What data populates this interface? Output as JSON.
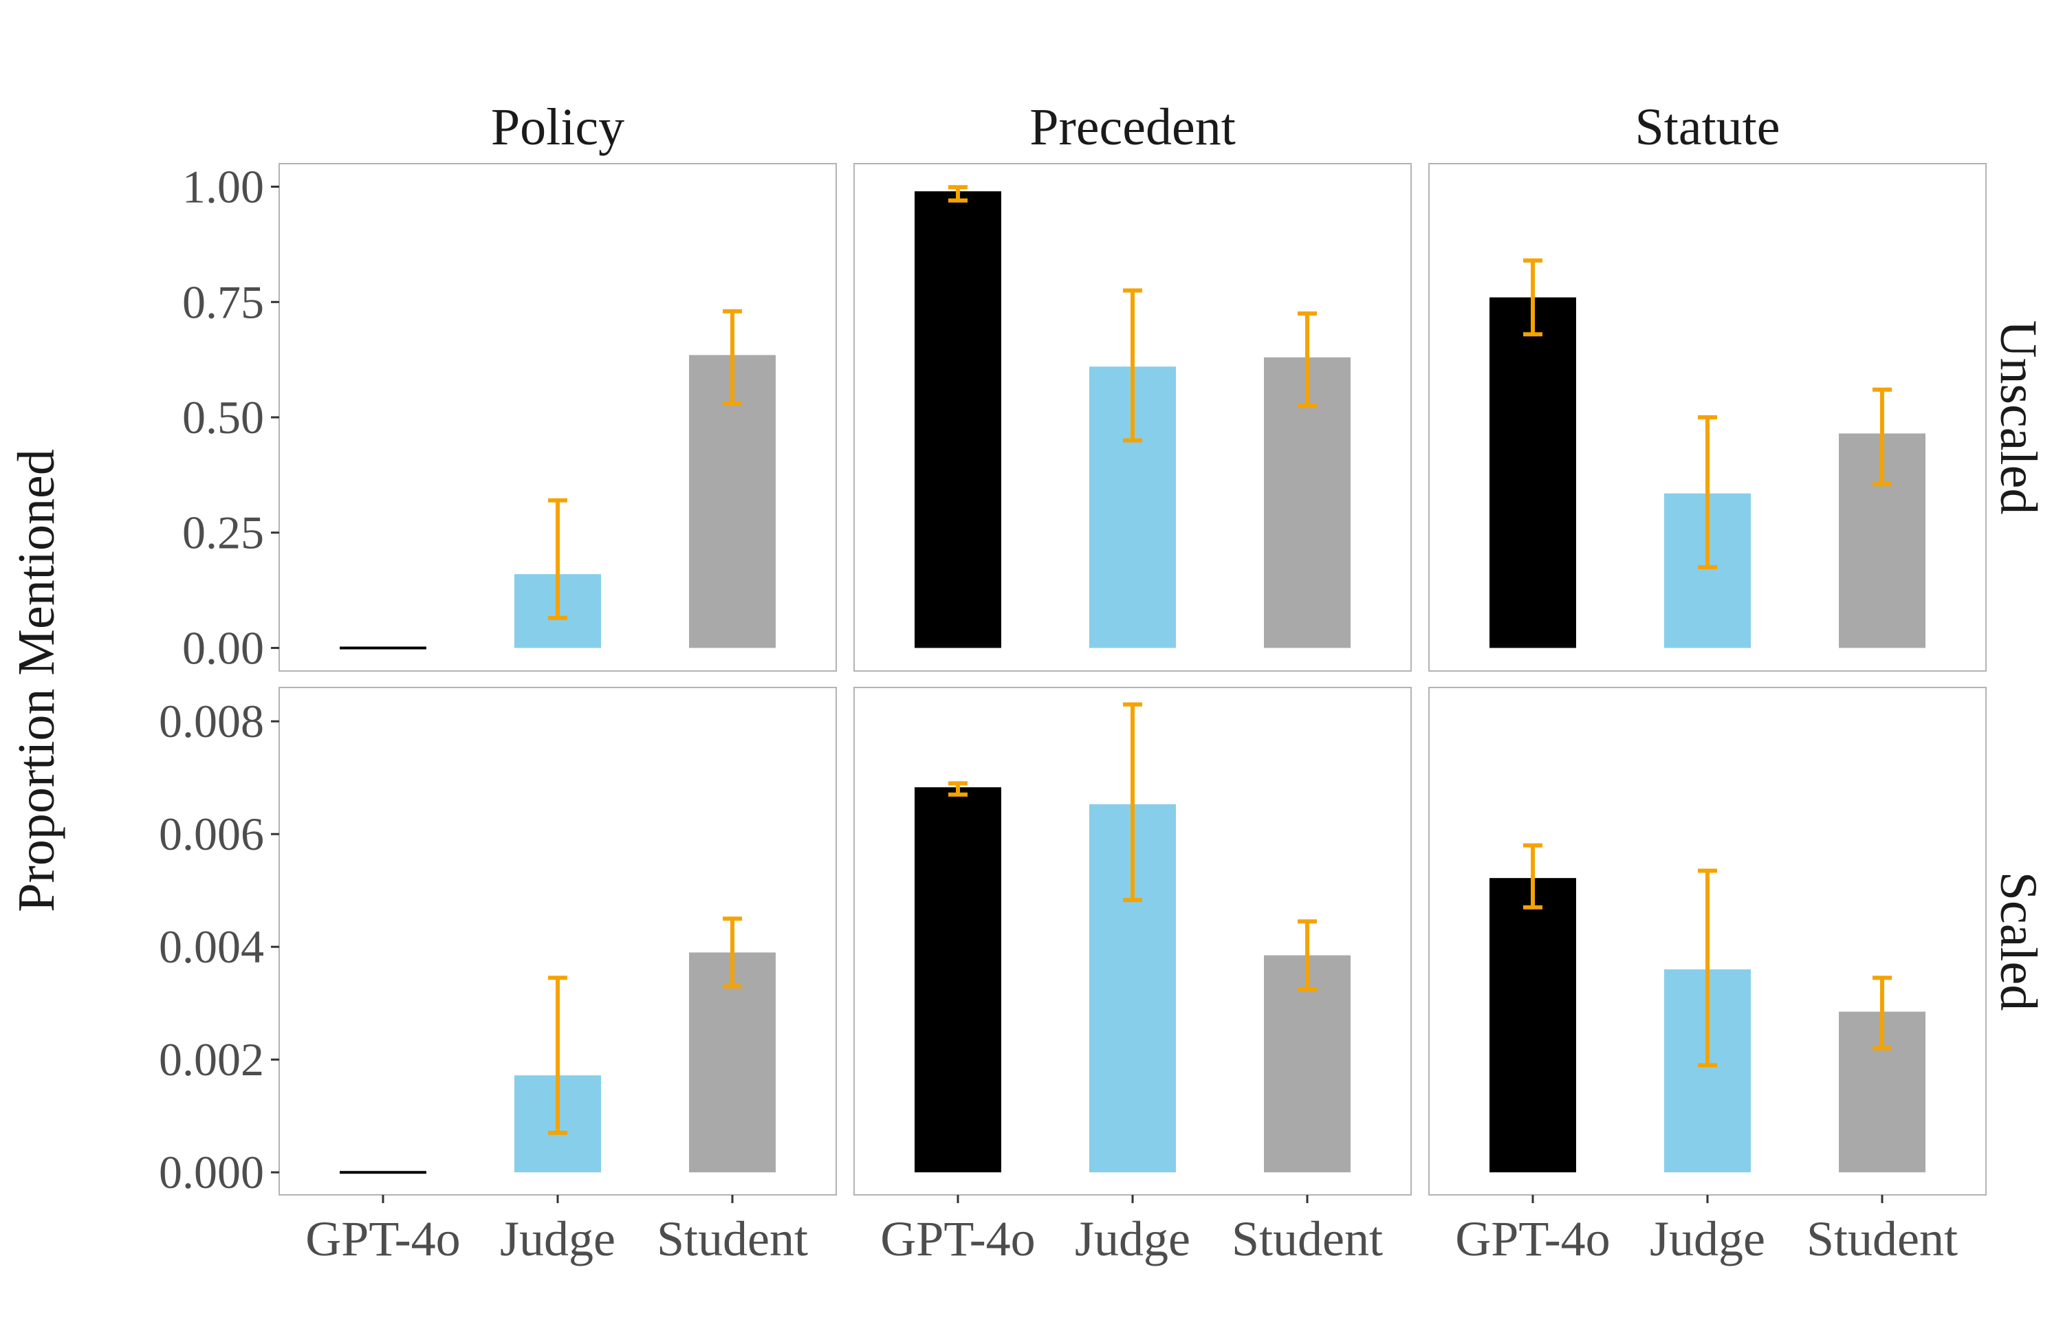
{
  "chart_data": {
    "type": "bar",
    "ylabel": "Proportion Mentioned",
    "columns": [
      "Policy",
      "Precedent",
      "Statute"
    ],
    "rows": [
      "Unscaled",
      "Scaled"
    ],
    "categories": [
      "GPT-4o",
      "Judge",
      "Student"
    ],
    "colors": {
      "GPT-4o": "#000000",
      "Judge": "#87ceeb",
      "Student": "#a9a9a9",
      "error_bar": "#f5a300"
    },
    "error_bars": true,
    "grid": false,
    "legend": "none",
    "panels": [
      {
        "row": "Unscaled",
        "ylim": [
          -0.05,
          1.05
        ],
        "yticks": [
          0,
          0.25,
          0.5,
          0.75,
          1.0
        ],
        "ytick_labels": [
          "0.00",
          "0.25",
          "0.50",
          "0.75",
          "1.00"
        ],
        "facets": [
          {
            "column": "Policy",
            "values": [
              0.0,
              0.16,
              0.635
            ],
            "lower": [
              0.0,
              0.065,
              0.53
            ],
            "upper": [
              0.0,
              0.32,
              0.73
            ]
          },
          {
            "column": "Precedent",
            "values": [
              0.99,
              0.61,
              0.63
            ],
            "lower": [
              0.97,
              0.45,
              0.525
            ],
            "upper": [
              0.999,
              0.775,
              0.725
            ]
          },
          {
            "column": "Statute",
            "values": [
              0.76,
              0.335,
              0.465
            ],
            "lower": [
              0.68,
              0.175,
              0.355
            ],
            "upper": [
              0.84,
              0.5,
              0.56
            ]
          }
        ]
      },
      {
        "row": "Scaled",
        "ylim": [
          -0.0004,
          0.0086
        ],
        "yticks": [
          0,
          0.002,
          0.004,
          0.006,
          0.008
        ],
        "ytick_labels": [
          "0.000",
          "0.002",
          "0.004",
          "0.006",
          "0.008"
        ],
        "facets": [
          {
            "column": "Policy",
            "values": [
              2e-05,
              0.00172,
              0.0039
            ],
            "lower": [
              2e-05,
              0.0007,
              0.0033
            ],
            "upper": [
              2e-05,
              0.00345,
              0.0045
            ]
          },
          {
            "column": "Precedent",
            "values": [
              0.00683,
              0.00653,
              0.00385
            ],
            "lower": [
              0.0067,
              0.00483,
              0.00325
            ],
            "upper": [
              0.0069,
              0.0083,
              0.00445
            ]
          },
          {
            "column": "Statute",
            "values": [
              0.00522,
              0.0036,
              0.00285
            ],
            "lower": [
              0.0047,
              0.0019,
              0.0022
            ],
            "upper": [
              0.0058,
              0.00535,
              0.00345
            ]
          }
        ]
      }
    ]
  }
}
